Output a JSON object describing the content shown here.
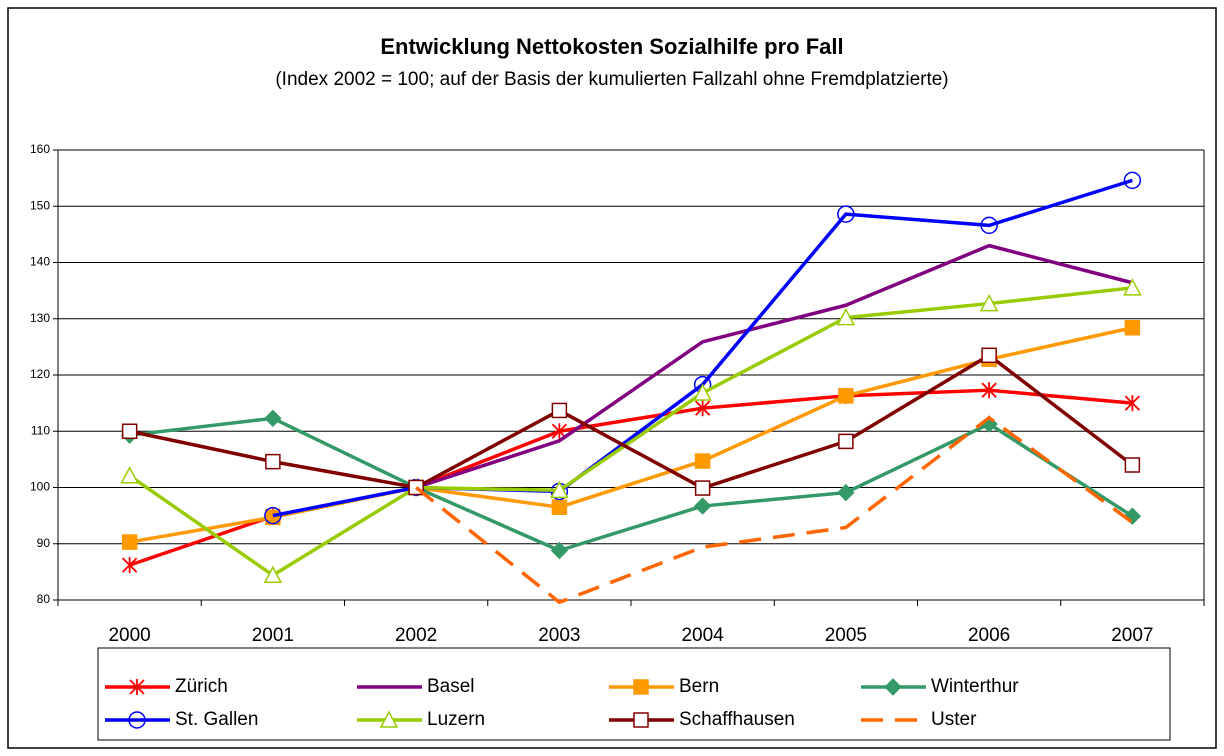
{
  "chart_data": {
    "type": "line",
    "title": "Entwicklung Nettokosten Sozialhilfe pro Fall",
    "subtitle": "(Index 2002 = 100; auf der Basis der kumulierten Fallzahl ohne Fremdplatzierte)",
    "categories": [
      "2000",
      "2001",
      "2002",
      "2003",
      "2004",
      "2005",
      "2006",
      "2007"
    ],
    "ylim": [
      80,
      160
    ],
    "yticks": [
      80,
      90,
      100,
      110,
      120,
      130,
      140,
      150,
      160
    ],
    "grid": true,
    "legend": "bottom",
    "series": [
      {
        "name": "Zürich",
        "color": "#ff0000",
        "marker": "star",
        "values": [
          86.2,
          94.9,
          100,
          110,
          114.1,
          116.3,
          117.3,
          115
        ]
      },
      {
        "name": "Basel",
        "color": "#800080",
        "marker": "none",
        "values": [
          null,
          null,
          100,
          108.3,
          125.9,
          132.4,
          143,
          136.4
        ]
      },
      {
        "name": "Bern",
        "color": "#ff9900",
        "marker": "square",
        "values": [
          90.3,
          94.7,
          100,
          96.5,
          104.7,
          116.3,
          122.8,
          128.4
        ]
      },
      {
        "name": "Winterthur",
        "color": "#339966",
        "marker": "diamond",
        "values": [
          109.3,
          112.3,
          100,
          88.8,
          96.7,
          99.1,
          111.3,
          94.9
        ]
      },
      {
        "name": "St. Gallen",
        "color": "#0000ff",
        "marker": "circle",
        "values": [
          null,
          95,
          100,
          99.3,
          118.3,
          148.6,
          146.6,
          154.6
        ]
      },
      {
        "name": "Luzern",
        "color": "#99cc00",
        "marker": "triangle",
        "values": [
          102.1,
          84.4,
          100,
          99.5,
          116.8,
          130.2,
          132.7,
          135.5
        ]
      },
      {
        "name": "Schaffhausen",
        "color": "#800000",
        "marker": "open-square",
        "values": [
          110,
          104.6,
          100,
          113.7,
          99.9,
          108.2,
          123.5,
          104
        ]
      },
      {
        "name": "Uster",
        "color": "#ff6600",
        "marker": "none",
        "dash": true,
        "values": [
          null,
          null,
          100,
          79.6,
          89.4,
          92.9,
          112.4,
          93.8
        ]
      }
    ]
  }
}
